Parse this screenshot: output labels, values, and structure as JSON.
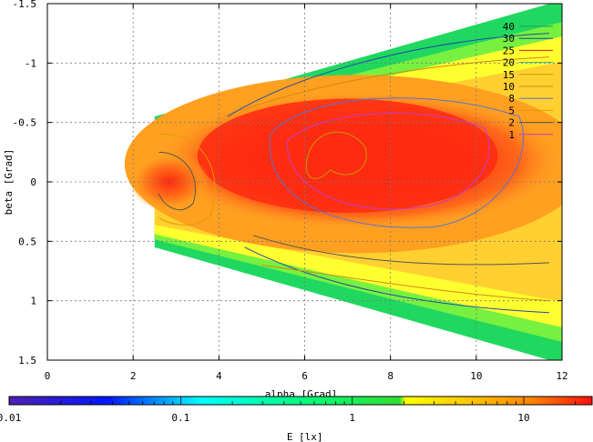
{
  "chart_data": {
    "type": "heatmap",
    "title": "",
    "xlabel": "alpha [Grad]",
    "ylabel": "beta [Grad]",
    "xlim": [
      0,
      12
    ],
    "ylim": [
      1.5,
      -1.5
    ],
    "y_axis_inverted": true,
    "xticks": [
      0,
      2,
      4,
      6,
      8,
      10,
      12
    ],
    "yticks": [
      -1.5,
      -1,
      -0.5,
      0,
      0.5,
      1,
      1.5
    ],
    "grid": true,
    "contour_levels": [
      {
        "label": "40",
        "value": 40,
        "color": "#1f9f55"
      },
      {
        "label": "30",
        "value": 30,
        "color": "#1b4fa0"
      },
      {
        "label": "25",
        "value": 25,
        "color": "#c02626"
      },
      {
        "label": "20",
        "value": 20,
        "color": "#2fa6a8"
      },
      {
        "label": "15",
        "value": 15,
        "color": "#c79a00"
      },
      {
        "label": "10",
        "value": 10,
        "color": "#d08a10"
      },
      {
        "label": "8",
        "value": 8,
        "color": "#5a6fd6"
      },
      {
        "label": "5",
        "value": 5,
        "color": "#e69a00"
      },
      {
        "label": "2",
        "value": 2,
        "color": "#555555"
      },
      {
        "label": "1",
        "value": 1,
        "color": "#c03cc8"
      }
    ],
    "legend_position": "top-right",
    "colorbar": {
      "label": "E [lx]",
      "scale": "log",
      "range": [
        0.01,
        25
      ],
      "tick_labels": [
        "0.01",
        "0.1",
        "1",
        "10"
      ],
      "tick_values": [
        0.01,
        0.1,
        1,
        10
      ]
    },
    "field_extent": {
      "alpha_min": 2.5,
      "alpha_max": 11.7,
      "beta_halfwidth_at_alpha_min": 0.55,
      "beta_halfwidth_at_alpha_max": 1.5
    },
    "peak_region": {
      "alpha": 6.5,
      "beta": -0.2,
      "value": 25
    }
  }
}
